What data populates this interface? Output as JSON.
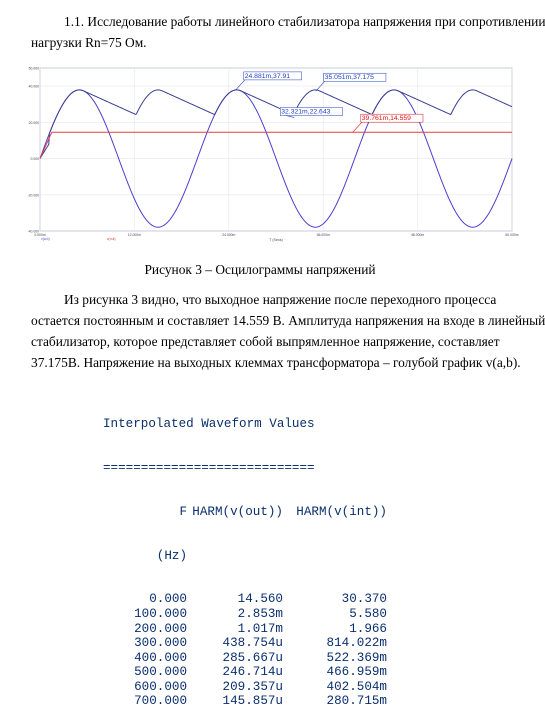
{
  "text": {
    "heading_line1": "1.1. Исследование работы линейного стабилизатора напряжения при сопротивлении",
    "heading_line2": "нагрузки Rn=75 Ом.",
    "caption": "Рисунок 3 – Осцилограммы напряжений",
    "body_line1": "Из рисунка 3 видно, что выходное напряжение после переходного процесса",
    "body_line2": "остается постоянным и составляет 14.559 В. Амплитуда напряжения на входе в линейный",
    "body_line3": "стабилизатор, которое представляет собой выпрямленное напряжение, составляет",
    "body_line4": "37.175В. Напряжение на выходных клеммах трансформатора – голубой график v(a,b)."
  },
  "chart_data": {
    "type": "line",
    "title": "",
    "xlabel": "T (Secs)",
    "ylabel": "",
    "x_range": [
      0,
      0.06
    ],
    "y_range": [
      -40,
      50
    ],
    "y_ticks": [
      "50.000",
      "40.000",
      "20.000",
      "0.000",
      "-20.000",
      "-40.000"
    ],
    "x_ticks": [
      "0.000m",
      "12.000m",
      "24.000m",
      "36.000m",
      "48.000m",
      "60.000m"
    ],
    "grid": true,
    "legend": [
      "v(a,b)",
      "v(out)"
    ],
    "series": [
      {
        "name": "v(a,b)",
        "color": "#4b3fd0",
        "kind": "sine",
        "amplitude": 37.9,
        "frequency_hz": 50
      },
      {
        "name": "v(int)",
        "color": "#3a3f8f",
        "kind": "rectified_with_ripple",
        "peak": 37.9,
        "valley": 22.6
      },
      {
        "name": "v(out)",
        "color": "#e04040",
        "kind": "dc",
        "value": 14.559
      }
    ],
    "annotations": [
      {
        "text": "24.881m,37.91",
        "color": "#2040c0",
        "x": 0.024881,
        "y": 37.91
      },
      {
        "text": "32.321m,22.643",
        "color": "#2040c0",
        "x": 0.032321,
        "y": 22.643
      },
      {
        "text": "35.051m,37.175",
        "color": "#2040c0",
        "x": 0.035051,
        "y": 37.175
      },
      {
        "text": "39.761m,14.559",
        "color": "#e01010",
        "x": 0.039761,
        "y": 14.559
      }
    ]
  },
  "table": {
    "title": "Interpolated Waveform Values",
    "rule": "============================",
    "headers": [
      "F",
      "HARM(v(out))",
      "HARM(v(int))"
    ],
    "unit": "(Hz)",
    "rows": [
      [
        "0.000",
        "14.560",
        "30.370"
      ],
      [
        "100.000",
        "2.853m",
        "5.580"
      ],
      [
        "200.000",
        "1.017m",
        "1.966"
      ],
      [
        "300.000",
        "438.754u",
        "814.022m"
      ],
      [
        "400.000",
        "285.667u",
        "522.369m"
      ],
      [
        "500.000",
        "246.714u",
        "466.959m"
      ],
      [
        "600.000",
        "209.357u",
        "402.504m"
      ],
      [
        "700.000",
        "145.857u",
        "280.715m"
      ]
    ]
  }
}
